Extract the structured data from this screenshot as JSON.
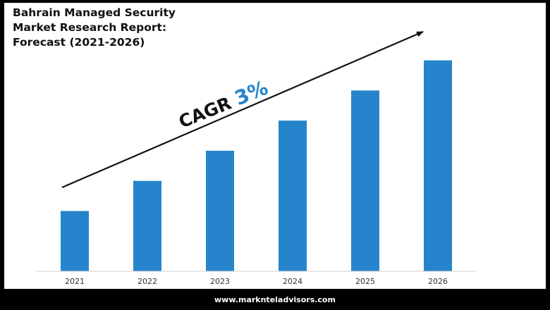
{
  "title_lines": [
    "Bahrain Managed Security",
    "Market Research Report:",
    "Forecast (2021-2026)"
  ],
  "annotation": {
    "prefix": "CAGR ",
    "value": "3%"
  },
  "footer": "www.marknteladvisors.com",
  "colors": {
    "bar": "#2584CB",
    "accent": "#2584CB",
    "text": "#111111",
    "background": "#000000",
    "panel": "#FFFFFF"
  },
  "chart_data": {
    "type": "bar",
    "title": "Bahrain Managed Security Market Research Report: Forecast (2021-2026)",
    "categories": [
      "2021",
      "2022",
      "2023",
      "2024",
      "2025",
      "2026"
    ],
    "values": [
      1.0,
      1.5,
      2.0,
      2.5,
      3.0,
      3.5
    ],
    "xlabel": "",
    "ylabel": "",
    "ylim": [
      0,
      3.8
    ],
    "grid": false,
    "legend": "none",
    "trend_arrow": true
  }
}
